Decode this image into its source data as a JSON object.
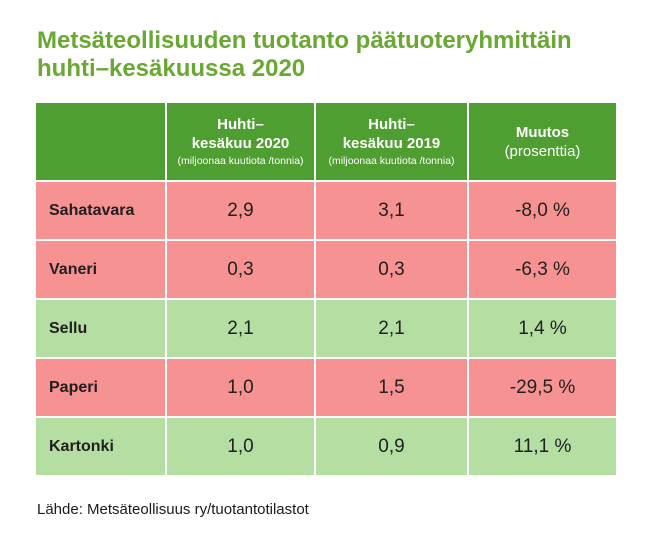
{
  "page": {
    "title_line1": "Metsäteollisuuden tuotanto päätuoteryhmittäin",
    "title_line2": "huhti–kesäkuussa 2020",
    "source": "Lähde: Metsäteollisuus ry/tuotantotilastot"
  },
  "colors": {
    "title": "#69a832",
    "header_bg": "#4f9e31",
    "header_text": "#ffffff",
    "row_negative": "#f79292",
    "row_positive": "#b5dfa2",
    "cell_text": "#212121",
    "background": "#ffffff"
  },
  "table": {
    "header": [
      {
        "line1": "",
        "line2": "",
        "sub": ""
      },
      {
        "line1": "Huhti–",
        "line2": "kesäkuu 2020",
        "sub": "(miljoonaa kuutiota /tonnia)"
      },
      {
        "line1": "Huhti–",
        "line2": "kesäkuu 2019",
        "sub": "(miljoonaa kuutiota /tonnia)"
      },
      {
        "line1": "Muutos",
        "line2": "(prosenttia)",
        "sub": ""
      }
    ],
    "rows": [
      {
        "label": "Sahatavara",
        "v2020": "2,9",
        "v2019": "3,1",
        "change": "-8,0 %",
        "tone": "negative"
      },
      {
        "label": "Vaneri",
        "v2020": "0,3",
        "v2019": "0,3",
        "change": "-6,3 %",
        "tone": "negative"
      },
      {
        "label": "Sellu",
        "v2020": "2,1",
        "v2019": "2,1",
        "change": "1,4 %",
        "tone": "positive"
      },
      {
        "label": "Paperi",
        "v2020": "1,0",
        "v2019": "1,5",
        "change": "-29,5 %",
        "tone": "negative"
      },
      {
        "label": "Kartonki",
        "v2020": "1,0",
        "v2019": "0,9",
        "change": "11,1 %",
        "tone": "positive"
      }
    ]
  },
  "chart_data": {
    "type": "table",
    "title": "Metsäteollisuuden tuotanto päätuoteryhmittäin huhti–kesäkuussa 2020",
    "columns": [
      "",
      "Huhti–kesäkuu 2020 (miljoonaa kuutiota /tonnia)",
      "Huhti–kesäkuu 2019 (miljoonaa kuutiota /tonnia)",
      "Muutos (prosenttia)"
    ],
    "rows": [
      [
        "Sahatavara",
        2.9,
        3.1,
        -8.0
      ],
      [
        "Vaneri",
        0.3,
        0.3,
        -6.3
      ],
      [
        "Sellu",
        2.1,
        2.1,
        1.4
      ],
      [
        "Paperi",
        1.0,
        1.5,
        -29.5
      ],
      [
        "Kartonki",
        1.0,
        0.9,
        11.1
      ]
    ],
    "row_color_rule": "negative change = pink row, positive change = light green row",
    "source": "Lähde: Metsäteollisuus ry/tuotantotilastot"
  }
}
